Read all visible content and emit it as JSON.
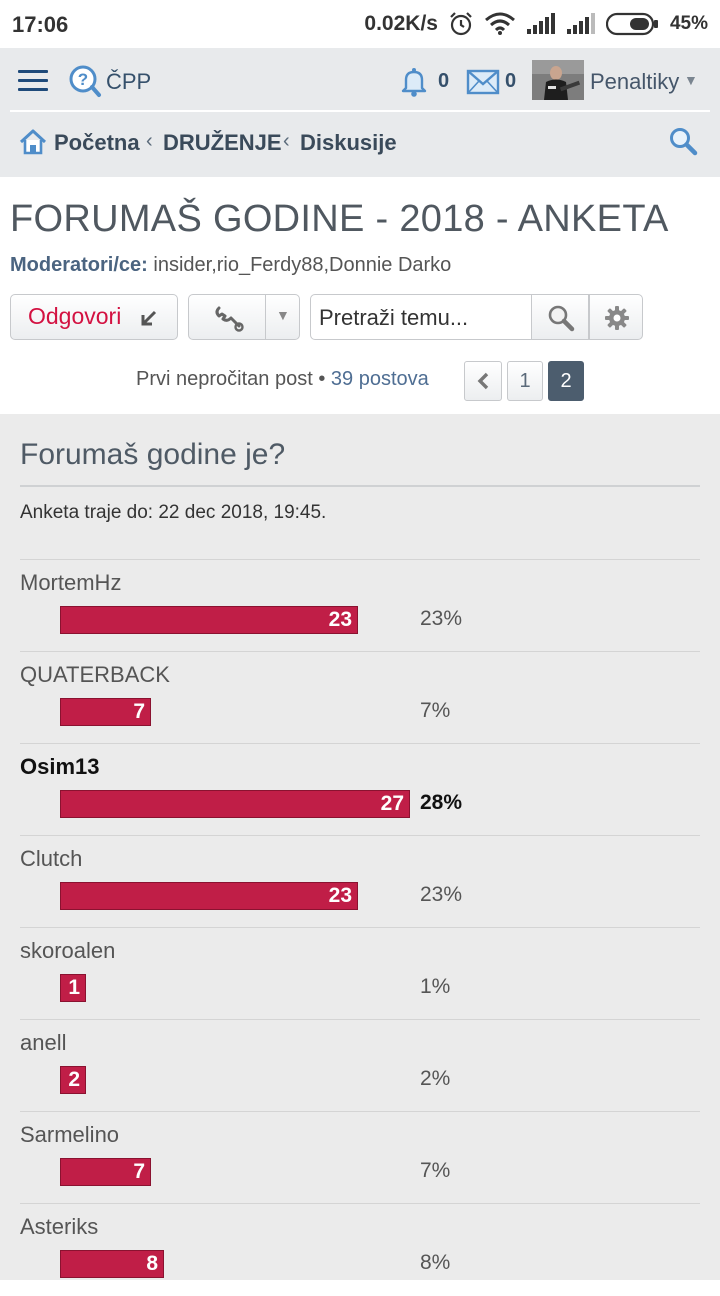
{
  "status_bar": {
    "time": "17:06",
    "net_speed": "0.02K/s",
    "battery": "45%",
    "icons": [
      "alarm-icon",
      "wifi-icon",
      "signal-icon",
      "signal-icon",
      "battery-icon"
    ]
  },
  "header": {
    "faq_label": "ČPP",
    "notifications_count": "0",
    "messages_count": "0",
    "username": "Penaltiky",
    "breadcrumbs": [
      "Početna",
      "DRUŽENJE",
      "Diskusije"
    ]
  },
  "topic": {
    "title": "FORUMAŠ GODINE - 2018 - ANKETA",
    "moderators_label": "Moderatori/ce:",
    "moderators": "insider,rio_Ferdy88,Donnie Darko",
    "reply_label": "Odgovori",
    "search_placeholder": "Pretraži temu...",
    "first_unread": "Prvi nepročitan post",
    "separator": "•",
    "post_count": "39 postova",
    "pages": [
      "1",
      "2"
    ],
    "current_page": "2"
  },
  "poll": {
    "question": "Forumaš godine je?",
    "ends": "Anketa traje do: 22 dec 2018, 19:45.",
    "bar_color": "#c01e47",
    "options": [
      {
        "name": "MortemHz",
        "votes": "23",
        "percent": "23%",
        "voted": false
      },
      {
        "name": "QUATERBACK",
        "votes": "7",
        "percent": "7%",
        "voted": false
      },
      {
        "name": "Osim13",
        "votes": "27",
        "percent": "28%",
        "voted": true
      },
      {
        "name": "Clutch",
        "votes": "23",
        "percent": "23%",
        "voted": false
      },
      {
        "name": "skoroalen",
        "votes": "1",
        "percent": "1%",
        "voted": false
      },
      {
        "name": "anell",
        "votes": "2",
        "percent": "2%",
        "voted": false
      },
      {
        "name": "Sarmelino",
        "votes": "7",
        "percent": "7%",
        "voted": false
      },
      {
        "name": "Asteriks",
        "votes": "8",
        "percent": "8%",
        "voted": false
      }
    ]
  }
}
